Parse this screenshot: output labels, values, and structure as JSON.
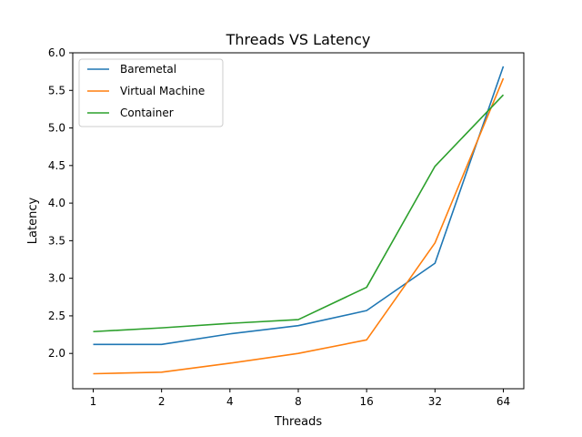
{
  "chart_data": {
    "type": "line",
    "title": "Threads VS Latency",
    "xlabel": "Threads",
    "ylabel": "Latency",
    "categories": [
      "1",
      "2",
      "4",
      "8",
      "16",
      "32",
      "64"
    ],
    "ylim": [
      1.53,
      6.0
    ],
    "yticks": [
      "2.0",
      "2.5",
      "3.0",
      "3.5",
      "4.0",
      "4.5",
      "5.0",
      "5.5",
      "6.0"
    ],
    "grid": false,
    "legend_position": "top-left",
    "series": [
      {
        "name": "Baremetal",
        "color": "#1f77b4",
        "values": [
          2.12,
          2.12,
          2.26,
          2.37,
          2.57,
          3.2,
          5.82
        ]
      },
      {
        "name": "Virtual Machine",
        "color": "#ff7f0e",
        "values": [
          1.73,
          1.75,
          1.87,
          2.0,
          2.18,
          3.47,
          5.66
        ]
      },
      {
        "name": "Container",
        "color": "#2ca02c",
        "values": [
          2.29,
          2.34,
          2.4,
          2.45,
          2.88,
          4.49,
          5.44
        ]
      }
    ]
  }
}
